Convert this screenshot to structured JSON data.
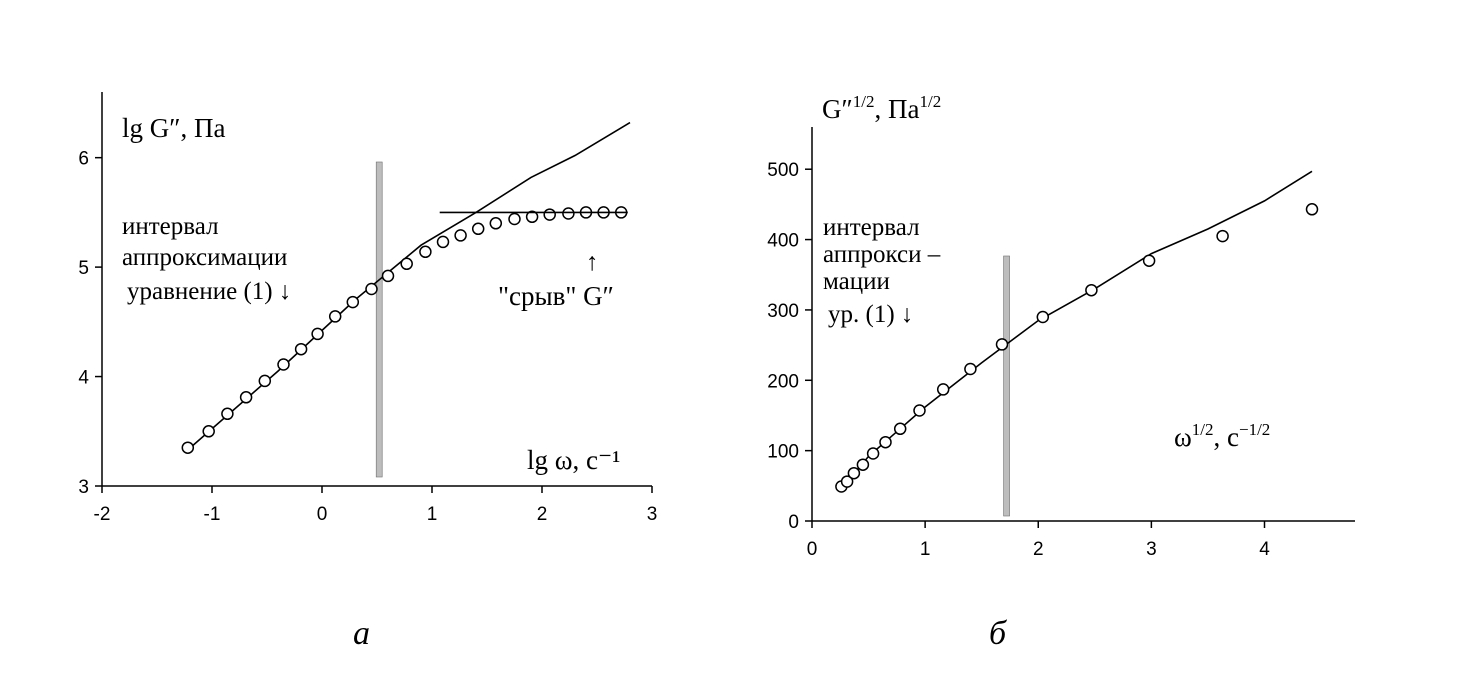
{
  "chart_data": [
    {
      "type": "line",
      "panel_label": "а",
      "ylabel": "lg G″, Па",
      "xlabel": "lg ω, с⁻¹",
      "xlim": [
        -2,
        3
      ],
      "ylim": [
        3,
        6.6
      ],
      "x_ticks": [
        -2,
        -1,
        0,
        1,
        2,
        3
      ],
      "y_ticks": [
        3,
        4,
        5,
        6
      ],
      "x_tick_labels": [
        "-2",
        "-1",
        "0",
        "1",
        "2",
        "3"
      ],
      "y_tick_labels": [
        "3",
        "4",
        "5",
        "6"
      ],
      "vertical_band_x": 0.52,
      "series": [
        {
          "kind": "line",
          "x": [
            -1.22,
            -0.4,
            0.3,
            0.9,
            1.4,
            1.9,
            2.3,
            2.8
          ],
          "y": [
            3.33,
            4.05,
            4.7,
            5.2,
            5.5,
            5.82,
            6.02,
            6.32
          ]
        },
        {
          "kind": "points",
          "x": [
            -1.22,
            -1.03,
            -0.86,
            -0.69,
            -0.52,
            -0.35,
            -0.19,
            -0.04,
            0.12,
            0.28,
            0.45,
            0.6,
            0.77,
            0.94,
            1.1,
            1.26,
            1.42,
            1.58,
            1.75,
            1.91,
            2.07,
            2.24,
            2.4,
            2.56,
            2.72
          ],
          "y": [
            3.35,
            3.5,
            3.66,
            3.81,
            3.96,
            4.11,
            4.25,
            4.39,
            4.55,
            4.68,
            4.8,
            4.92,
            5.03,
            5.14,
            5.23,
            5.29,
            5.35,
            5.4,
            5.44,
            5.46,
            5.48,
            5.49,
            5.5,
            5.5,
            5.5
          ]
        },
        {
          "kind": "line",
          "x": [
            1.07,
            2.78
          ],
          "y": [
            5.5,
            5.5
          ]
        }
      ],
      "annotations": {
        "interval_line1": "интервал",
        "interval_line2": "аппроксимации",
        "interval_line3": "уравнение (1) ↓",
        "breakdown": "\"срыв\" G″",
        "breakdown_arrow": "↑"
      }
    },
    {
      "type": "line",
      "panel_label": "б",
      "ylabel_base": "G″",
      "ylabel_exp": "1/2",
      "ylabel_unit": ", Па",
      "ylabel_unit_exp": "1/2",
      "xlabel_base": "ω",
      "xlabel_exp": "1/2",
      "xlabel_unit": ", с",
      "xlabel_unit_exp": "−1/2",
      "xlim": [
        0,
        4.8
      ],
      "ylim": [
        0,
        560
      ],
      "x_ticks": [
        0,
        1,
        2,
        3,
        4
      ],
      "y_ticks": [
        0,
        100,
        200,
        300,
        400,
        500
      ],
      "x_tick_labels": [
        "0",
        "1",
        "2",
        "3",
        "4"
      ],
      "y_tick_labels": [
        "0",
        "100",
        "200",
        "300",
        "400",
        "500"
      ],
      "vertical_band_x": 1.72,
      "series": [
        {
          "kind": "line",
          "x": [
            0.26,
            0.5,
            1.0,
            1.5,
            2.0,
            2.5,
            3.0,
            3.5,
            4.0,
            4.42
          ],
          "y": [
            45,
            92,
            162,
            225,
            285,
            330,
            380,
            415,
            455,
            497
          ]
        },
        {
          "kind": "points",
          "x": [
            0.26,
            0.31,
            0.37,
            0.45,
            0.54,
            0.65,
            0.78,
            0.95,
            1.16,
            1.4,
            1.68,
            2.04,
            2.47,
            2.98,
            3.63,
            4.42
          ],
          "y": [
            49,
            56,
            68,
            80,
            96,
            112,
            131,
            157,
            187,
            216,
            251,
            290,
            328,
            370,
            405,
            443
          ]
        }
      ],
      "annotations": {
        "interval_line1": "интервал",
        "interval_line2": "аппрокси –",
        "interval_line3": "мации",
        "interval_line4": "ур. (1) ↓"
      }
    }
  ]
}
